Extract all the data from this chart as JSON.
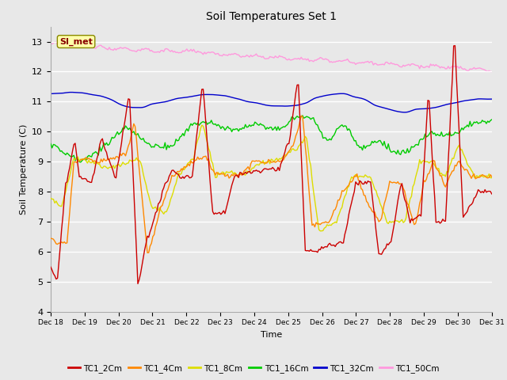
{
  "title": "Soil Temperatures Set 1",
  "xlabel": "Time",
  "ylabel": "Soil Temperature (C)",
  "ylim": [
    4.0,
    13.5
  ],
  "yticks": [
    4.0,
    5.0,
    6.0,
    7.0,
    8.0,
    9.0,
    10.0,
    11.0,
    12.0,
    13.0
  ],
  "series_colors": {
    "TC1_2Cm": "#cc0000",
    "TC1_4Cm": "#ff8800",
    "TC1_8Cm": "#dddd00",
    "TC1_16Cm": "#00cc00",
    "TC1_32Cm": "#0000cc",
    "TC1_50Cm": "#ff99dd"
  },
  "annotation_text": "SI_met",
  "annotation_color": "#880000",
  "annotation_bg": "#ffffaa",
  "annotation_edge": "#888800",
  "bg_color": "#e8e8e8",
  "grid_color": "#ffffff",
  "linewidth": 1.0,
  "xtick_labels": [
    "Dec 18",
    "Dec 19",
    "Dec 20",
    "Dec 21",
    "Dec 22",
    "Dec 23",
    "Dec 24",
    "Dec 25",
    "Dec 26",
    "Dec 27",
    "Dec 28",
    "Dec 29",
    "Dec 30",
    "Dec 31"
  ],
  "n_points": 325
}
